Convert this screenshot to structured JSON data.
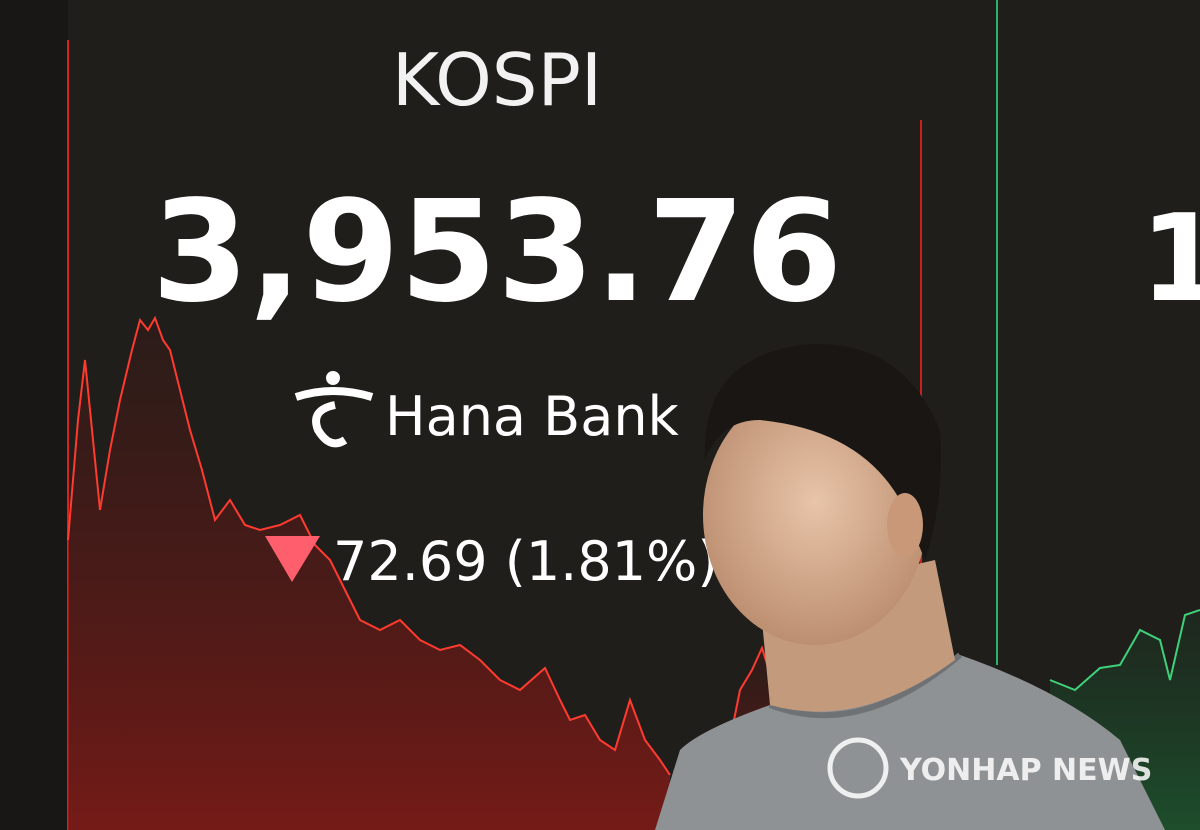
{
  "display": {
    "index_name": "KOSPI",
    "index_value": "3,953.76",
    "sponsor": "Hana Bank",
    "change": "72.69 (1.81%)",
    "partial_value": "1"
  },
  "watermark": "YONHAP NEWS"
}
